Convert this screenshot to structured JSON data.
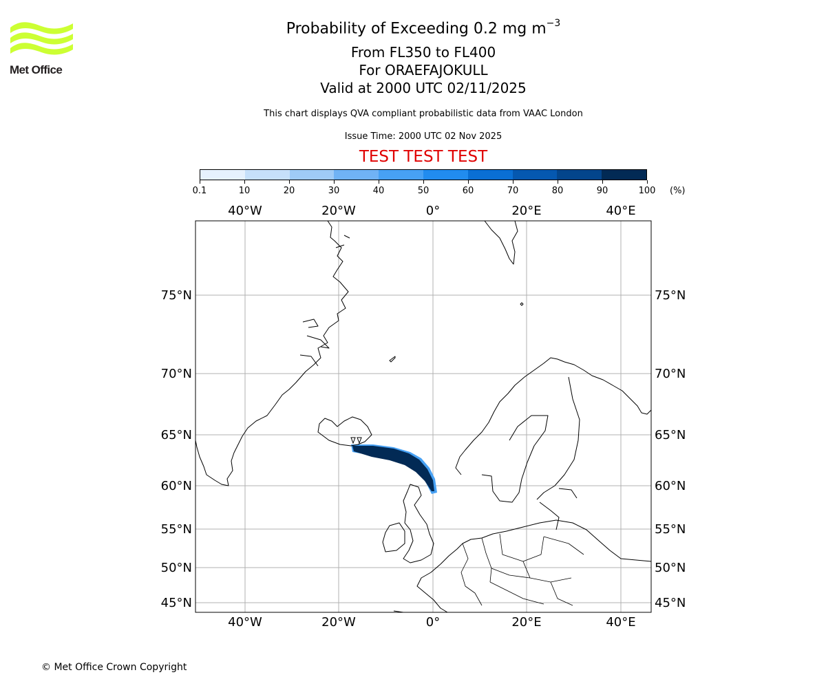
{
  "header": {
    "title_prefix": "Probability of Exceeding 0.2 mg m",
    "title_exponent": "−3",
    "flight_levels": "From FL350 to FL400",
    "volcano": "For ORAEFAJOKULL",
    "valid_time": "Valid at 2000 UTC 02/11/2025",
    "source_note": "This chart displays QVA compliant probabilistic data from VAAC London",
    "issue_time": "Issue Time: 2000 UTC 02 Nov 2025",
    "test_banner": "TEST TEST TEST"
  },
  "logo": {
    "text": "Met Office",
    "color": "#ccff33"
  },
  "colorbar": {
    "unit": "(%)",
    "labels": [
      "0.1",
      "10",
      "20",
      "30",
      "40",
      "50",
      "60",
      "70",
      "80",
      "90",
      "100"
    ],
    "colors": [
      "#e6f1fd",
      "#c6e0fa",
      "#9fcbf7",
      "#70b3f5",
      "#47a1f4",
      "#218cef",
      "#0a6fd4",
      "#0558b0",
      "#03458c",
      "#022a55"
    ]
  },
  "map": {
    "top_lon_labels": [
      "40°W",
      "20°W",
      "0°",
      "20°E",
      "40°E"
    ],
    "bottom_lon_labels": [
      "40°W",
      "20°W",
      "0°",
      "20°E",
      "40°E"
    ],
    "left_lat_labels": [
      "75°N",
      "70°N",
      "65°N",
      "60°N",
      "55°N",
      "50°N",
      "45°N"
    ],
    "right_lat_labels": [
      "75°N",
      "70°N",
      "65°N",
      "60°N",
      "55°N",
      "50°N",
      "45°N"
    ],
    "ash_plume_probability_percent": 100,
    "ash_plume_color": "#022a55"
  },
  "footer": {
    "copyright": "© Met Office Crown Copyright"
  }
}
